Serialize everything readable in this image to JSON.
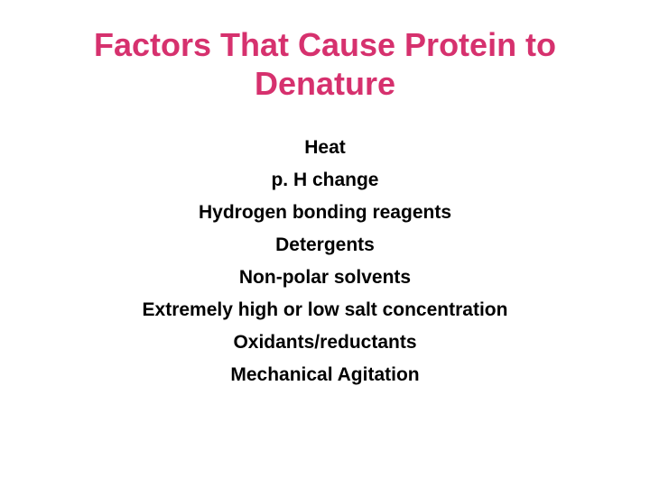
{
  "title": {
    "text": "Factors That Cause Protein to Denature",
    "color": "#d6316e",
    "fontsize": 36,
    "font_weight": "bold"
  },
  "factors": {
    "items": [
      "Heat",
      "p. H change",
      "Hydrogen bonding reagents",
      "Detergents",
      "Non-polar solvents",
      "Extremely high or low salt concentration",
      "Oxidants/reductants",
      "Mechanical Agitation"
    ],
    "color": "#000000",
    "fontsize": 21,
    "font_weight": "bold"
  },
  "background_color": "#ffffff"
}
